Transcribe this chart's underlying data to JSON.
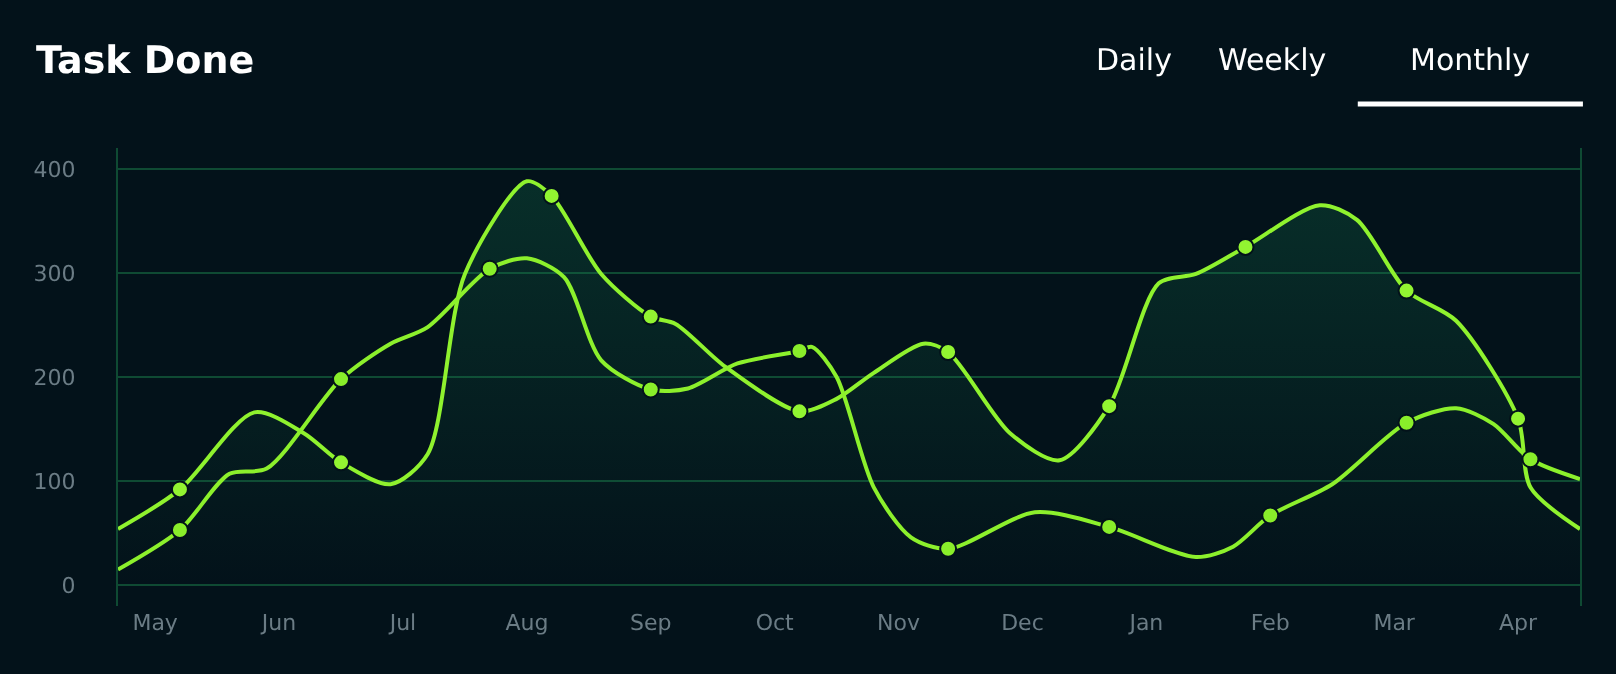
{
  "chart_data": {
    "type": "area",
    "title": "Task Done",
    "annotations": [
      "Daily",
      "Weekly",
      "Monthly"
    ],
    "categories": [
      null,
      null,
      null,
      "May",
      null,
      null,
      null,
      null,
      null,
      null,
      null,
      null,
      null,
      "Jun",
      null,
      null,
      null,
      null,
      null,
      null,
      null,
      null,
      null,
      "Jul",
      null,
      null,
      null,
      null,
      null,
      null,
      null,
      null,
      null,
      "Aug",
      null,
      null,
      null,
      null,
      null,
      null,
      null,
      null,
      null,
      "Sep",
      null,
      null,
      null,
      null,
      null,
      null,
      null,
      null,
      null,
      "Oct",
      null,
      null,
      null,
      null,
      null,
      null,
      null,
      null,
      null,
      "Nov",
      null,
      null,
      null,
      null,
      null,
      null,
      null,
      null,
      null,
      "Dec",
      null,
      null,
      null,
      null,
      null,
      null,
      null,
      null,
      null,
      "Jan",
      null,
      null,
      null,
      null,
      null,
      null,
      null,
      null,
      null,
      "Feb",
      null,
      null,
      null,
      null,
      null,
      null,
      null,
      null,
      null,
      "Mar",
      null,
      null,
      null,
      null,
      null,
      null,
      null,
      null,
      null,
      "Apr",
      null,
      null,
      null,
      null,
      null
    ],
    "ylim": [
      -20,
      420
    ],
    "yticks": [
      0,
      100,
      200,
      300,
      400
    ],
    "grid": "y",
    "marker": "none",
    "line_style": "solid",
    "series": [
      {
        "color": "#8ff22e",
        "values": [
          54,
          null,
          null,
          null,
          null,
          92,
          null,
          null,
          null,
          null,
          null,
          166,
          null,
          null,
          null,
          146,
          null,
          null,
          118,
          null,
          null,
          null,
          97,
          null,
          null,
          126,
          null,
          null,
          299,
          null,
          null,
          null,
          null,
          388,
          null,
          374,
          null,
          null,
          null,
          299,
          null,
          null,
          null,
          258,
          null,
          251,
          null,
          null,
          null,
          210,
          null,
          null,
          null,
          null,
          null,
          167,
          null,
          null,
          179,
          null,
          null,
          204,
          null,
          null,
          null,
          232,
          null,
          224,
          null,
          null,
          null,
          null,
          146,
          null,
          null,
          null,
          120,
          null,
          null,
          null,
          172,
          null,
          null,
          null,
          290,
          null,
          null,
          299,
          null,
          null,
          null,
          325,
          null,
          null,
          null,
          null,
          null,
          365,
          null,
          null,
          351,
          null,
          null,
          null,
          283,
          null,
          null,
          null,
          254,
          null,
          null,
          null,
          null,
          160,
          94,
          null,
          null,
          null,
          54
        ]
      },
      {
        "type": "line",
        "color": "#8cf02c",
        "values": [
          15,
          null,
          null,
          null,
          null,
          53,
          null,
          null,
          null,
          107,
          null,
          null,
          112,
          null,
          null,
          null,
          null,
          null,
          198,
          null,
          null,
          null,
          232,
          null,
          null,
          248,
          null,
          null,
          null,
          null,
          304,
          null,
          null,
          314,
          null,
          null,
          296,
          null,
          null,
          216,
          null,
          null,
          null,
          188,
          null,
          null,
          189,
          null,
          null,
          null,
          213,
          null,
          null,
          null,
          null,
          225,
          229,
          null,
          200,
          null,
          null,
          94,
          null,
          null,
          46,
          null,
          null,
          35,
          null,
          null,
          null,
          null,
          null,
          null,
          70,
          null,
          null,
          null,
          null,
          null,
          56,
          null,
          null,
          null,
          null,
          null,
          null,
          27,
          null,
          null,
          37,
          null,
          null,
          67,
          null,
          null,
          null,
          null,
          97,
          null,
          null,
          null,
          null,
          null,
          156,
          null,
          null,
          null,
          170,
          null,
          null,
          155,
          null,
          null,
          121,
          null,
          null,
          null,
          102
        ]
      },
      {
        "type": "scatter",
        "marker": "circle",
        "color": "#92f431",
        "values": [
          null,
          null,
          null,
          null,
          null,
          92,
          null,
          null,
          null,
          null,
          null,
          null,
          null,
          null,
          null,
          null,
          null,
          null,
          118,
          null,
          null,
          null,
          null,
          null,
          null,
          null,
          null,
          null,
          null,
          null,
          null,
          null,
          null,
          null,
          null,
          374,
          null,
          null,
          null,
          null,
          null,
          null,
          null,
          258,
          null,
          null,
          null,
          null,
          null,
          null,
          null,
          null,
          null,
          null,
          null,
          167,
          null,
          null,
          null,
          null,
          null,
          null,
          null,
          null,
          null,
          null,
          null,
          224,
          null,
          null,
          null,
          null,
          null,
          null,
          null,
          null,
          null,
          null,
          null,
          null,
          172,
          null,
          null,
          null,
          null,
          null,
          null,
          null,
          null,
          null,
          null,
          325,
          null,
          null,
          null,
          null,
          null,
          null,
          null,
          null,
          null,
          null,
          null,
          null,
          283,
          null,
          null,
          null,
          null,
          null,
          null,
          null,
          null,
          160,
          null,
          null,
          null,
          null,
          null
        ]
      },
      {
        "type": "scatter",
        "marker": "circle",
        "color": "#89ee2a",
        "values": [
          null,
          null,
          null,
          null,
          null,
          53,
          null,
          null,
          null,
          null,
          null,
          null,
          null,
          null,
          null,
          null,
          null,
          null,
          198,
          null,
          null,
          null,
          null,
          null,
          null,
          null,
          null,
          null,
          null,
          null,
          304,
          null,
          null,
          null,
          null,
          null,
          null,
          null,
          null,
          null,
          null,
          null,
          null,
          188,
          null,
          null,
          null,
          null,
          null,
          null,
          null,
          null,
          null,
          null,
          null,
          225,
          null,
          null,
          null,
          null,
          null,
          null,
          null,
          null,
          null,
          null,
          null,
          35,
          null,
          null,
          null,
          null,
          null,
          null,
          null,
          null,
          null,
          null,
          null,
          null,
          56,
          null,
          null,
          null,
          null,
          null,
          null,
          null,
          null,
          null,
          null,
          null,
          null,
          67,
          null,
          null,
          null,
          null,
          null,
          null,
          null,
          null,
          null,
          null,
          156,
          null,
          null,
          null,
          null,
          null,
          null,
          null,
          null,
          null,
          121,
          null,
          null,
          null,
          null
        ]
      }
    ]
  }
}
